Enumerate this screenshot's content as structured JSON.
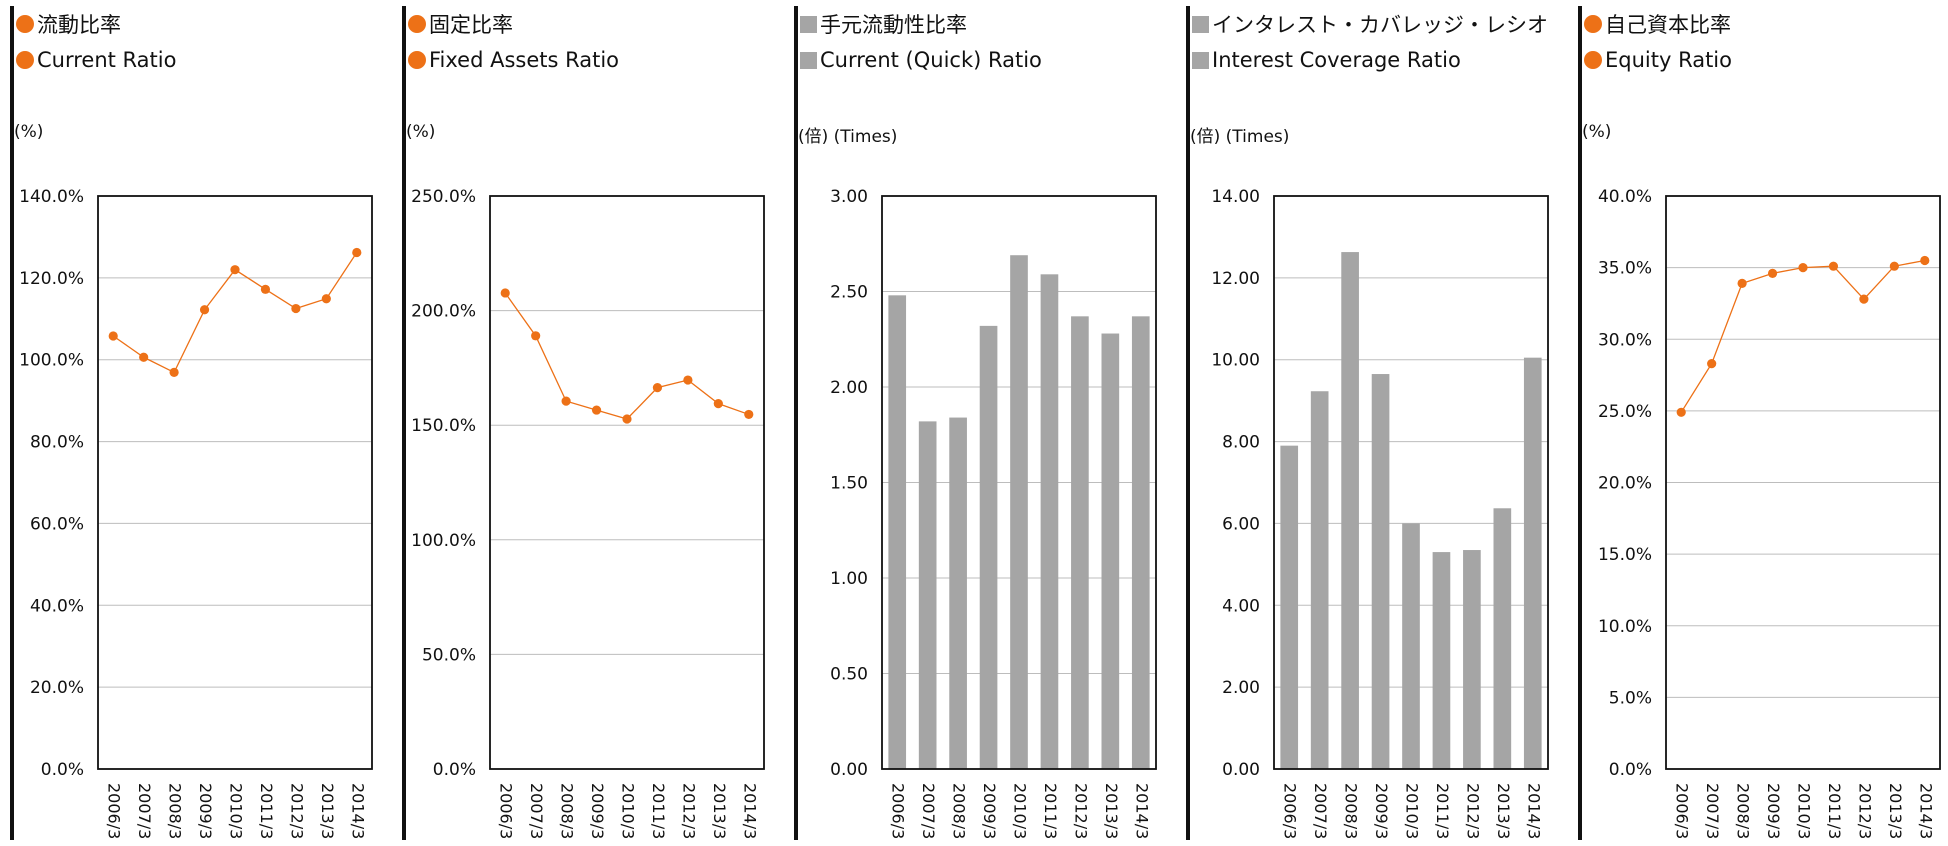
{
  "colors": {
    "orange": "#ED7117",
    "gray": "#A5A5A5",
    "grid": "#BDBDBD",
    "axis": "#111111"
  },
  "chart_data": [
    {
      "type": "line",
      "legend": [
        "流動比率",
        "Current Ratio"
      ],
      "unit": "(%)",
      "categories": [
        "2006/3",
        "2007/3",
        "2008/3",
        "2009/3",
        "2010/3",
        "2011/3",
        "2012/3",
        "2013/3",
        "2014/3"
      ],
      "values": [
        105.8,
        100.6,
        96.9,
        112.2,
        122.0,
        117.2,
        112.5,
        114.9,
        126.2
      ],
      "ylim": [
        0,
        140
      ],
      "yticks": [
        0,
        20,
        40,
        60,
        80,
        100,
        120,
        140
      ],
      "yticklabels": [
        "0.0%",
        "20.0%",
        "40.0%",
        "60.0%",
        "80.0%",
        "100.0%",
        "120.0%",
        "140.0%"
      ],
      "marker": "dot",
      "color": "orange",
      "grid": true
    },
    {
      "type": "line",
      "legend": [
        "固定比率",
        "Fixed Assets Ratio"
      ],
      "unit": "(%)",
      "categories": [
        "2006/3",
        "2007/3",
        "2008/3",
        "2009/3",
        "2010/3",
        "2011/3",
        "2012/3",
        "2013/3",
        "2014/3"
      ],
      "values": [
        207.7,
        189.0,
        160.5,
        156.6,
        152.7,
        166.4,
        169.7,
        159.4,
        154.7
      ],
      "ylim": [
        0,
        250
      ],
      "yticks": [
        0,
        50,
        100,
        150,
        200,
        250
      ],
      "yticklabels": [
        "0.0%",
        "50.0%",
        "100.0%",
        "150.0%",
        "200.0%",
        "250.0%"
      ],
      "marker": "dot",
      "color": "orange",
      "grid": true
    },
    {
      "type": "bar",
      "legend": [
        "手元流動性比率",
        "Current (Quick) Ratio"
      ],
      "unit": "(倍) (Times)",
      "categories": [
        "2006/3",
        "2007/3",
        "2008/3",
        "2009/3",
        "2010/3",
        "2011/3",
        "2012/3",
        "2013/3",
        "2014/3"
      ],
      "values": [
        2.48,
        1.82,
        1.84,
        2.32,
        2.69,
        2.59,
        2.37,
        2.28,
        2.37
      ],
      "ylim": [
        0,
        3
      ],
      "yticks": [
        0,
        0.5,
        1,
        1.5,
        2,
        2.5,
        3
      ],
      "yticklabels": [
        "0.00",
        "0.50",
        "1.00",
        "1.50",
        "2.00",
        "2.50",
        "3.00"
      ],
      "marker": "square",
      "color": "gray",
      "grid": true
    },
    {
      "type": "bar",
      "legend": [
        "インタレスト・カバレッジ・レシオ",
        "Interest Coverage Ratio"
      ],
      "unit": "(倍) (Times)",
      "categories": [
        "2006/3",
        "2007/3",
        "2008/3",
        "2009/3",
        "2010/3",
        "2011/3",
        "2012/3",
        "2013/3",
        "2014/3"
      ],
      "values": [
        7.9,
        9.23,
        12.63,
        9.65,
        6.0,
        5.3,
        5.35,
        6.37,
        10.05
      ],
      "ylim": [
        0,
        14
      ],
      "yticks": [
        0,
        2,
        4,
        6,
        8,
        10,
        12,
        14
      ],
      "yticklabels": [
        "0.00",
        "2.00",
        "4.00",
        "6.00",
        "8.00",
        "10.00",
        "12.00",
        "14.00"
      ],
      "marker": "square",
      "color": "gray",
      "grid": true
    },
    {
      "type": "line",
      "legend": [
        "自己資本比率",
        "Equity Ratio"
      ],
      "unit": "(%)",
      "categories": [
        "2006/3",
        "2007/3",
        "2008/3",
        "2009/3",
        "2010/3",
        "2011/3",
        "2012/3",
        "2013/3",
        "2014/3"
      ],
      "values": [
        24.9,
        28.3,
        33.9,
        34.6,
        35.0,
        35.1,
        32.8,
        35.1,
        35.5
      ],
      "ylim": [
        0,
        40
      ],
      "yticks": [
        0,
        5,
        10,
        15,
        20,
        25,
        30,
        35,
        40
      ],
      "yticklabels": [
        "0.0%",
        "5.0%",
        "10.0%",
        "15.0%",
        "20.0%",
        "25.0%",
        "30.0%",
        "35.0%",
        "40.0%"
      ],
      "marker": "dot",
      "color": "orange",
      "grid": true
    }
  ]
}
